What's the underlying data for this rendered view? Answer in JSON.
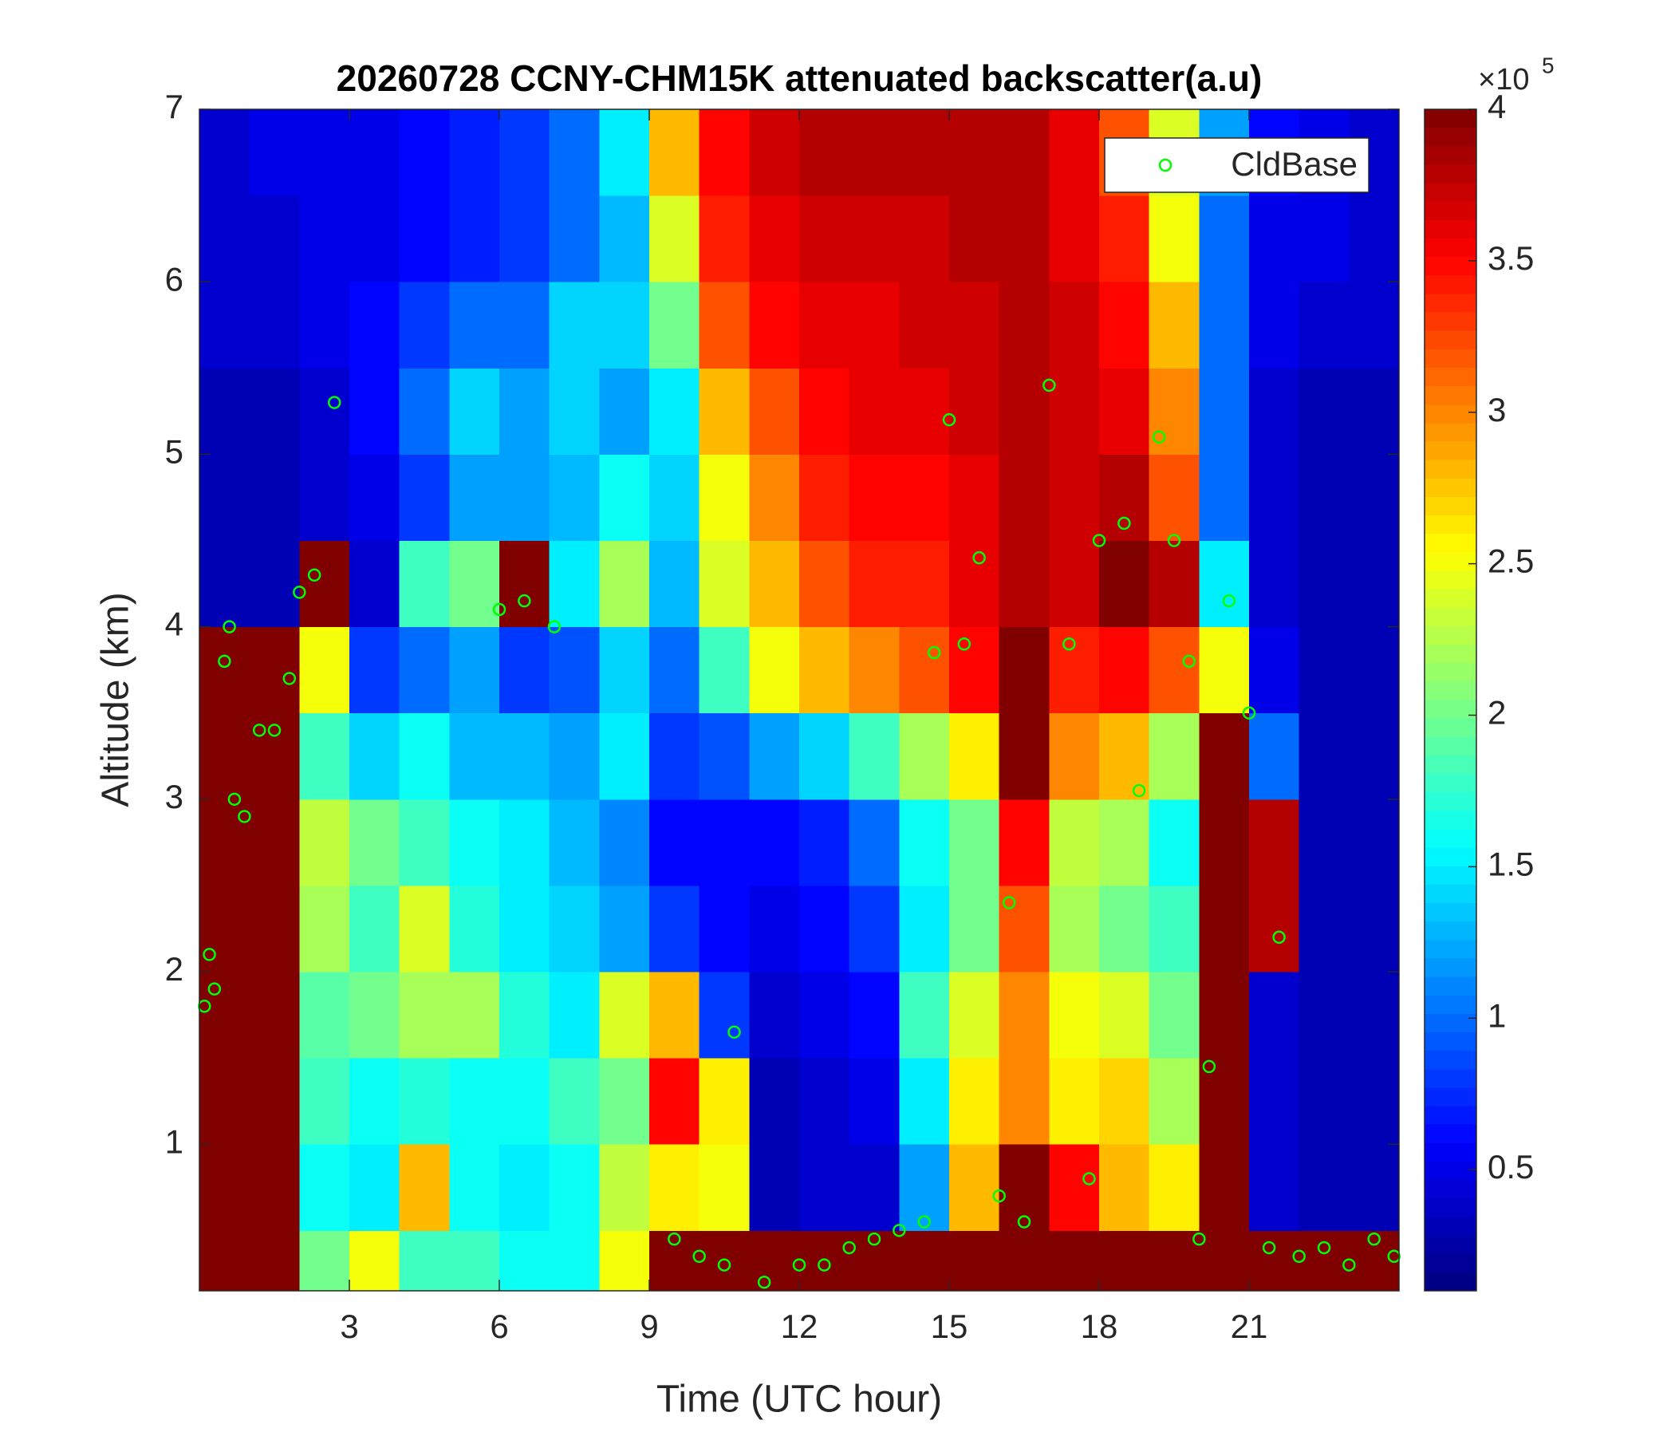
{
  "chart_data": {
    "type": "heatmap",
    "title": "20260728 CCNY-CHM15K attenuated backscatter(a.u)",
    "x_label": "Time (UTC hour)",
    "y_label": "Altitude (km)",
    "colorbar_multiplier": "×10",
    "colorbar_exponent": "5",
    "colormap": "jet",
    "xlim": [
      0,
      24
    ],
    "ylim": [
      0.15,
      7
    ],
    "clim": [
      0.1,
      4
    ],
    "xticks": [
      3,
      6,
      9,
      12,
      15,
      18,
      21
    ],
    "yticks": [
      1,
      2,
      3,
      4,
      5,
      6,
      7
    ],
    "cticks": [
      0.5,
      1,
      1.5,
      2,
      2.5,
      3,
      3.5,
      4
    ],
    "x_edges": [
      0,
      1,
      2,
      3,
      4,
      5,
      6,
      7,
      8,
      9,
      10,
      11,
      12,
      13,
      14,
      15,
      16,
      17,
      18,
      19,
      20,
      21,
      22,
      23,
      24
    ],
    "y_edges": [
      0.15,
      0.5,
      1,
      1.5,
      2,
      2.5,
      3,
      3.5,
      4,
      4.5,
      5,
      5.5,
      6,
      6.5,
      7
    ],
    "z": [
      [
        4,
        4,
        2,
        2.5,
        1.8,
        1.8,
        1.6,
        1.6,
        2.5,
        4,
        4,
        4,
        4,
        4,
        4,
        4,
        4,
        4,
        4,
        4,
        4,
        4,
        4,
        4
      ],
      [
        4,
        4,
        1.6,
        1.5,
        2.8,
        1.6,
        1.5,
        1.6,
        2.3,
        2.6,
        2.5,
        0.3,
        0.4,
        0.4,
        1.2,
        2.8,
        4,
        3.5,
        2.8,
        2.6,
        4,
        0.4,
        0.3,
        0.3
      ],
      [
        4,
        4,
        1.8,
        1.6,
        1.7,
        1.6,
        1.6,
        1.8,
        2,
        3.5,
        2.6,
        0.3,
        0.4,
        0.5,
        1.5,
        2.6,
        3,
        2.6,
        2.7,
        2.2,
        4,
        0.4,
        0.3,
        0.3
      ],
      [
        4,
        4,
        1.9,
        2,
        2.2,
        2.2,
        1.7,
        1.5,
        2.4,
        2.8,
        0.8,
        0.4,
        0.5,
        0.6,
        1.8,
        2.4,
        3,
        2.5,
        2.4,
        2,
        4,
        0.4,
        0.3,
        0.3
      ],
      [
        4,
        4,
        2.2,
        1.8,
        2.4,
        1.7,
        1.5,
        1.4,
        1.2,
        0.8,
        0.6,
        0.5,
        0.6,
        0.8,
        1.5,
        2,
        3.2,
        2.2,
        2,
        1.8,
        4,
        3.8,
        0.3,
        0.3
      ],
      [
        4,
        4,
        2.3,
        2,
        1.8,
        1.6,
        1.5,
        1.3,
        1.1,
        0.6,
        0.6,
        0.6,
        0.7,
        1,
        1.6,
        2,
        3.5,
        2.3,
        2.2,
        1.6,
        4,
        3.8,
        0.3,
        0.3
      ],
      [
        4,
        4,
        1.8,
        1.4,
        1.6,
        1.3,
        1.3,
        1.2,
        1.5,
        0.8,
        0.9,
        1.2,
        1.4,
        1.8,
        2.2,
        2.6,
        4,
        3,
        2.8,
        2.2,
        4,
        1,
        0.3,
        0.3
      ],
      [
        4,
        4,
        2.5,
        0.8,
        1,
        1.2,
        0.8,
        0.9,
        1.4,
        1,
        1.8,
        2.5,
        2.8,
        3,
        3.2,
        3.5,
        4,
        3.4,
        3.5,
        3.2,
        2.5,
        0.5,
        0.3,
        0.3
      ],
      [
        0.3,
        0.3,
        4,
        0.4,
        1.8,
        2,
        4,
        1.5,
        2.2,
        1.3,
        2.4,
        2.8,
        3.2,
        3.4,
        3.4,
        3.6,
        3.8,
        3.7,
        4,
        3.8,
        1.5,
        0.4,
        0.3,
        0.3
      ],
      [
        0.3,
        0.3,
        0.4,
        0.5,
        0.8,
        1.2,
        1.2,
        1.3,
        1.6,
        1.4,
        2.5,
        3,
        3.4,
        3.5,
        3.5,
        3.6,
        3.8,
        3.7,
        3.8,
        3.2,
        1,
        0.4,
        0.3,
        0.3
      ],
      [
        0.3,
        0.3,
        0.4,
        0.6,
        1,
        1.4,
        1.2,
        1.4,
        1.2,
        1.5,
        2.8,
        3.2,
        3.5,
        3.6,
        3.6,
        3.7,
        3.8,
        3.7,
        3.6,
        3,
        1,
        0.4,
        0.3,
        0.3
      ],
      [
        0.4,
        0.4,
        0.5,
        0.6,
        0.8,
        1,
        1,
        1.4,
        1.4,
        2,
        3.2,
        3.5,
        3.6,
        3.6,
        3.7,
        3.7,
        3.8,
        3.7,
        3.5,
        2.8,
        1,
        0.5,
        0.4,
        0.4
      ],
      [
        0.4,
        0.4,
        0.5,
        0.5,
        0.6,
        0.7,
        0.8,
        1,
        1.3,
        2.4,
        3.4,
        3.6,
        3.7,
        3.7,
        3.7,
        3.8,
        3.8,
        3.6,
        3.4,
        2.5,
        1,
        0.5,
        0.5,
        0.4
      ],
      [
        0.4,
        0.5,
        0.5,
        0.5,
        0.6,
        0.7,
        0.8,
        1,
        1.5,
        2.8,
        3.5,
        3.7,
        3.8,
        3.8,
        3.8,
        3.8,
        3.8,
        3.6,
        3.2,
        2.4,
        1.2,
        0.6,
        0.5,
        0.4
      ]
    ],
    "series": [
      {
        "name": "CldBase",
        "color": "#00ff00",
        "x": [
          0.1,
          0.2,
          0.3,
          0.5,
          0.6,
          0.7,
          0.9,
          1.2,
          1.5,
          1.8,
          2.0,
          2.3,
          2.7,
          6.0,
          6.5,
          7.1,
          9.5,
          10,
          10.5,
          10.7,
          11.3,
          12,
          12.5,
          13,
          13.5,
          14,
          14.5,
          14.7,
          15,
          15.3,
          15.6,
          16,
          16.2,
          16.5,
          17,
          17.4,
          17.8,
          18,
          18.5,
          18.8,
          19.2,
          19.5,
          19.8,
          20,
          20.2,
          20.6,
          21,
          21.4,
          21.6,
          22,
          22.5,
          23,
          23.5,
          23.9
        ],
        "values": [
          1.8,
          2.1,
          1.9,
          3.8,
          4.0,
          3.0,
          2.9,
          3.4,
          3.4,
          3.7,
          4.2,
          4.3,
          5.3,
          4.1,
          4.15,
          4.0,
          0.45,
          0.35,
          0.3,
          1.65,
          0.2,
          0.3,
          0.3,
          0.4,
          0.45,
          0.5,
          0.55,
          3.85,
          5.2,
          3.9,
          4.4,
          0.7,
          2.4,
          0.55,
          5.4,
          3.9,
          0.8,
          4.5,
          4.6,
          3.05,
          5.1,
          4.5,
          3.8,
          0.45,
          1.45,
          4.15,
          3.5,
          0.4,
          2.2,
          0.35,
          0.4,
          0.3,
          0.45,
          0.35
        ]
      }
    ],
    "legend": "upper right"
  }
}
